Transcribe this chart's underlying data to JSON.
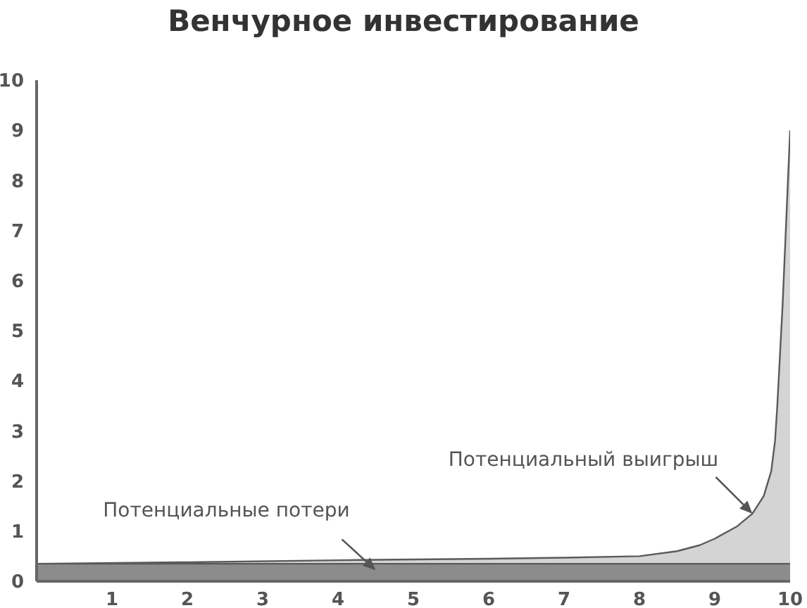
{
  "chart_data": {
    "type": "area",
    "title": "Венчурное инвестирование",
    "x": [
      0,
      2,
      4,
      6,
      7,
      8,
      8.5,
      8.8,
      9,
      9.3,
      9.5,
      9.65,
      9.75,
      9.8,
      9.83,
      9.9,
      10
    ],
    "series": [
      {
        "color": "#d4d4d4",
        "values": [
          0.35,
          0.38,
          0.42,
          0.45,
          0.47,
          0.5,
          0.6,
          0.72,
          0.85,
          1.1,
          1.35,
          1.7,
          2.2,
          2.8,
          3.5,
          5.5,
          9
        ]
      },
      {
        "color": "#8c8c8c",
        "x": [
          0,
          10
        ],
        "values": [
          0.35,
          0.35
        ]
      }
    ],
    "xlim": [
      0,
      10
    ],
    "xticks": [
      1,
      2,
      3,
      4,
      5,
      6,
      7,
      8,
      9,
      10
    ],
    "ylim": [
      0,
      10
    ],
    "yticks": [
      0,
      1,
      2,
      3,
      4,
      5,
      6,
      7,
      8,
      9,
      10
    ],
    "grid": false,
    "legend": false,
    "annotations": [
      {
        "text": "Потенциальные потери",
        "x": 4.5,
        "y": 0.22
      },
      {
        "text": "Потенциальный выигрыш",
        "x": 9.5,
        "y": 1.35
      }
    ]
  }
}
